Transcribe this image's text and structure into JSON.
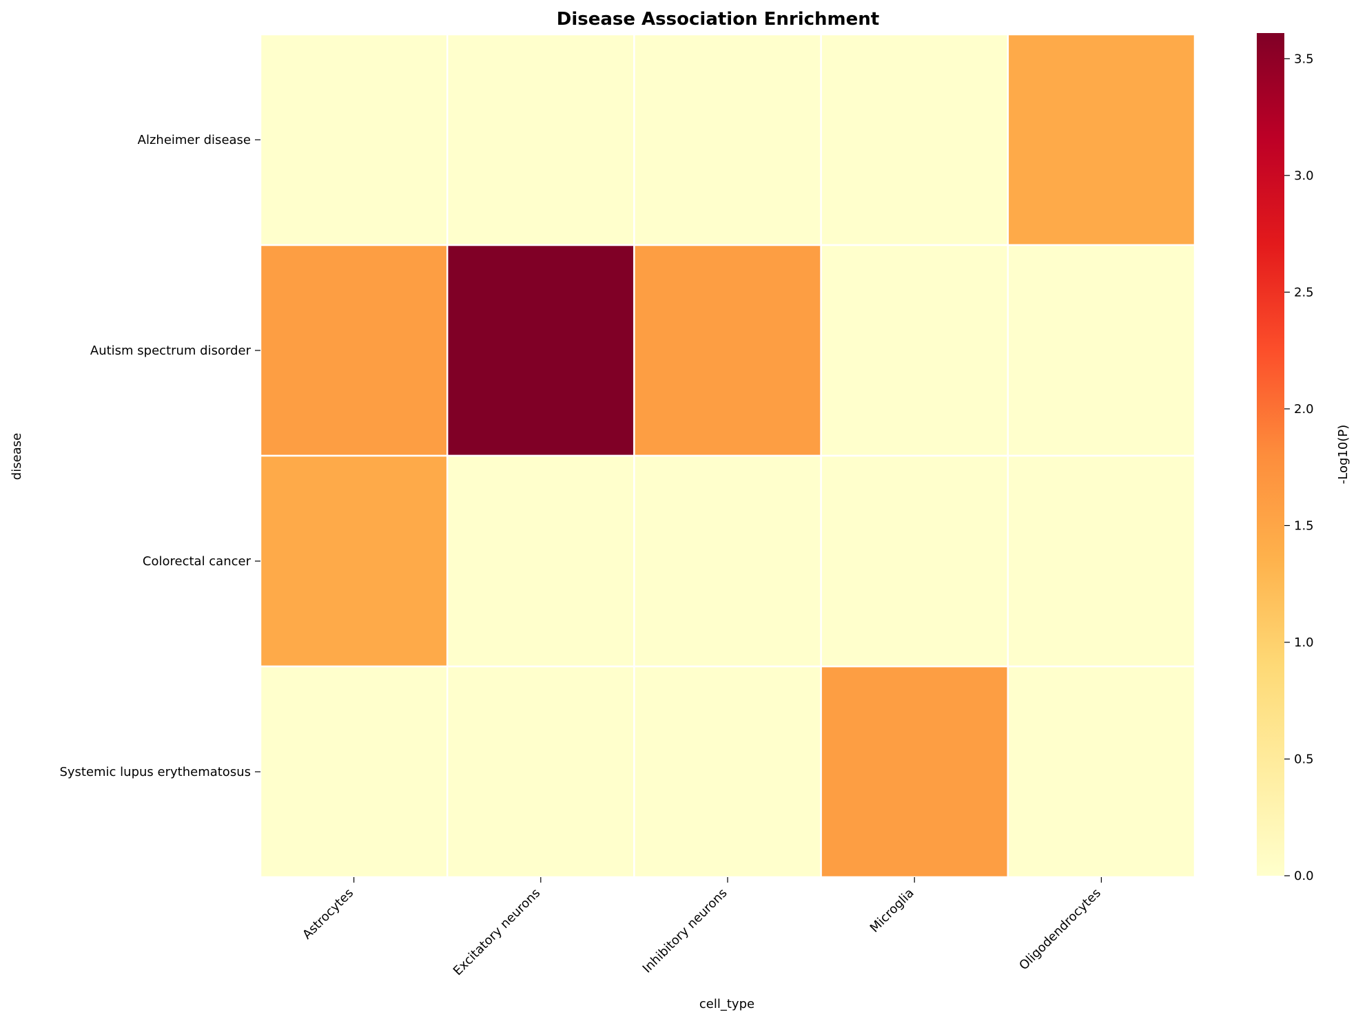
{
  "chart_data": {
    "type": "heatmap",
    "title": "Disease Association Enrichment",
    "xlabel": "cell_type",
    "ylabel": "disease",
    "x_categories": [
      "Astrocytes",
      "Excitatory neurons",
      "Inhibitory neurons",
      "Microglia",
      "Oligodendrocytes"
    ],
    "y_categories": [
      "Alzheimer disease",
      "Autism spectrum disorder",
      "Colorectal cancer",
      "Systemic lupus erythematosus"
    ],
    "values": [
      [
        0.0,
        0.0,
        0.0,
        0.0,
        1.45
      ],
      [
        1.6,
        3.61,
        1.6,
        0.0,
        0.0
      ],
      [
        1.45,
        0.0,
        0.0,
        0.0,
        0.0
      ],
      [
        0.0,
        0.0,
        0.0,
        1.6,
        0.0
      ]
    ],
    "colorbar": {
      "label": "-Log10(P)",
      "range": [
        0,
        3.61
      ],
      "ticks": [
        0.0,
        0.5,
        1.0,
        1.5,
        2.0,
        2.5,
        3.0,
        3.5
      ],
      "tick_labels": [
        "0.0",
        "0.5",
        "1.0",
        "1.5",
        "2.0",
        "2.5",
        "3.0",
        "3.5"
      ]
    },
    "colormap": "YlOrRd",
    "colormap_stops": [
      "#ffffcc",
      "#ffeda0",
      "#fed976",
      "#feb24c",
      "#fd8d3c",
      "#fc4e2a",
      "#e31a1c",
      "#bd0026",
      "#800026"
    ],
    "cell_border_color": "#ffffff",
    "grid": false
  }
}
